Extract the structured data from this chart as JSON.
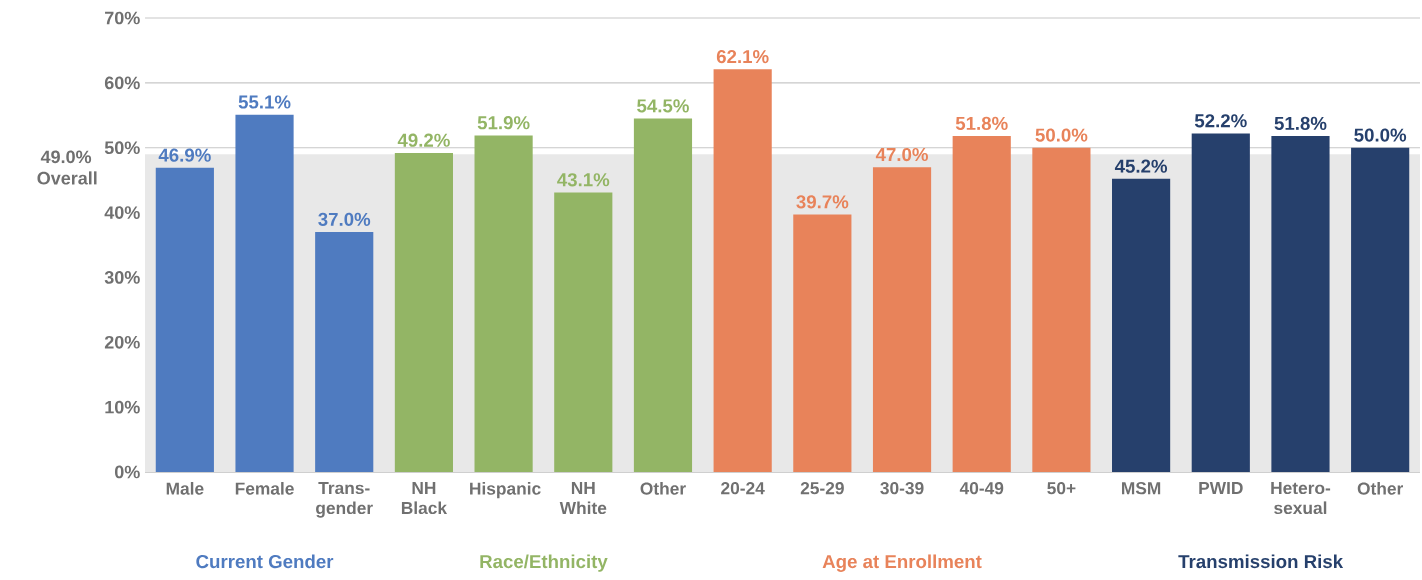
{
  "chart_data": {
    "type": "bar",
    "categories": [
      "Male",
      "Female",
      "Trans-gender",
      "NH Black",
      "Hispanic",
      "NH White",
      "Other",
      "20-24",
      "25-29",
      "30-39",
      "40-49",
      "50+",
      "MSM",
      "PWID",
      "Hetero-sexual",
      "Other"
    ],
    "series": [
      {
        "name": "Current Gender",
        "color": "#4f7bc0",
        "values": [
          46.9,
          55.1,
          37.0,
          null,
          null,
          null,
          null,
          null,
          null,
          null,
          null,
          null,
          null,
          null,
          null,
          null
        ],
        "value_labels": [
          "46.9%",
          "55.1%",
          "37.0%",
          null,
          null,
          null,
          null,
          null,
          null,
          null,
          null,
          null,
          null,
          null,
          null,
          null
        ]
      },
      {
        "name": "Race/Ethnicity",
        "color": "#93b565",
        "values": [
          null,
          null,
          null,
          49.2,
          51.9,
          43.1,
          54.5,
          null,
          null,
          null,
          null,
          null,
          null,
          null,
          null,
          null
        ],
        "value_labels": [
          null,
          null,
          null,
          "49.2%",
          "51.9%",
          "43.1%",
          "54.5%",
          null,
          null,
          null,
          null,
          null,
          null,
          null,
          null,
          null
        ]
      },
      {
        "name": "Age at Enrollment",
        "color": "#e8835a",
        "values": [
          null,
          null,
          null,
          null,
          null,
          null,
          null,
          62.1,
          39.7,
          47.0,
          51.8,
          50.0,
          null,
          null,
          null,
          null
        ],
        "value_labels": [
          null,
          null,
          null,
          null,
          null,
          null,
          null,
          "62.1%",
          "39.7%",
          "47.0%",
          "51.8%",
          "50.0%",
          null,
          null,
          null,
          null
        ]
      },
      {
        "name": "Transmission Risk",
        "color": "#26406c",
        "values": [
          null,
          null,
          null,
          null,
          null,
          null,
          null,
          null,
          null,
          null,
          null,
          null,
          45.2,
          52.2,
          51.8,
          50.0
        ],
        "value_labels": [
          null,
          null,
          null,
          null,
          null,
          null,
          null,
          null,
          null,
          null,
          null,
          null,
          "45.2%",
          "52.2%",
          "51.8%",
          "50.0%"
        ]
      }
    ],
    "ylim": [
      0,
      70
    ],
    "yticks": [
      {
        "value": 0,
        "label": "0%"
      },
      {
        "value": 10,
        "label": "10%"
      },
      {
        "value": 20,
        "label": "20%"
      },
      {
        "value": 30,
        "label": "30%"
      },
      {
        "value": 40,
        "label": "40%"
      },
      {
        "value": 50,
        "label": "50%"
      },
      {
        "value": 60,
        "label": "60%"
      },
      {
        "value": 70,
        "label": "70%"
      }
    ],
    "grid": "y",
    "legend": false,
    "bands": [
      {
        "axis": "y",
        "from": 0,
        "to": 49.0,
        "label": "49.0% Overall",
        "color": "#e8e8e8"
      }
    ]
  }
}
